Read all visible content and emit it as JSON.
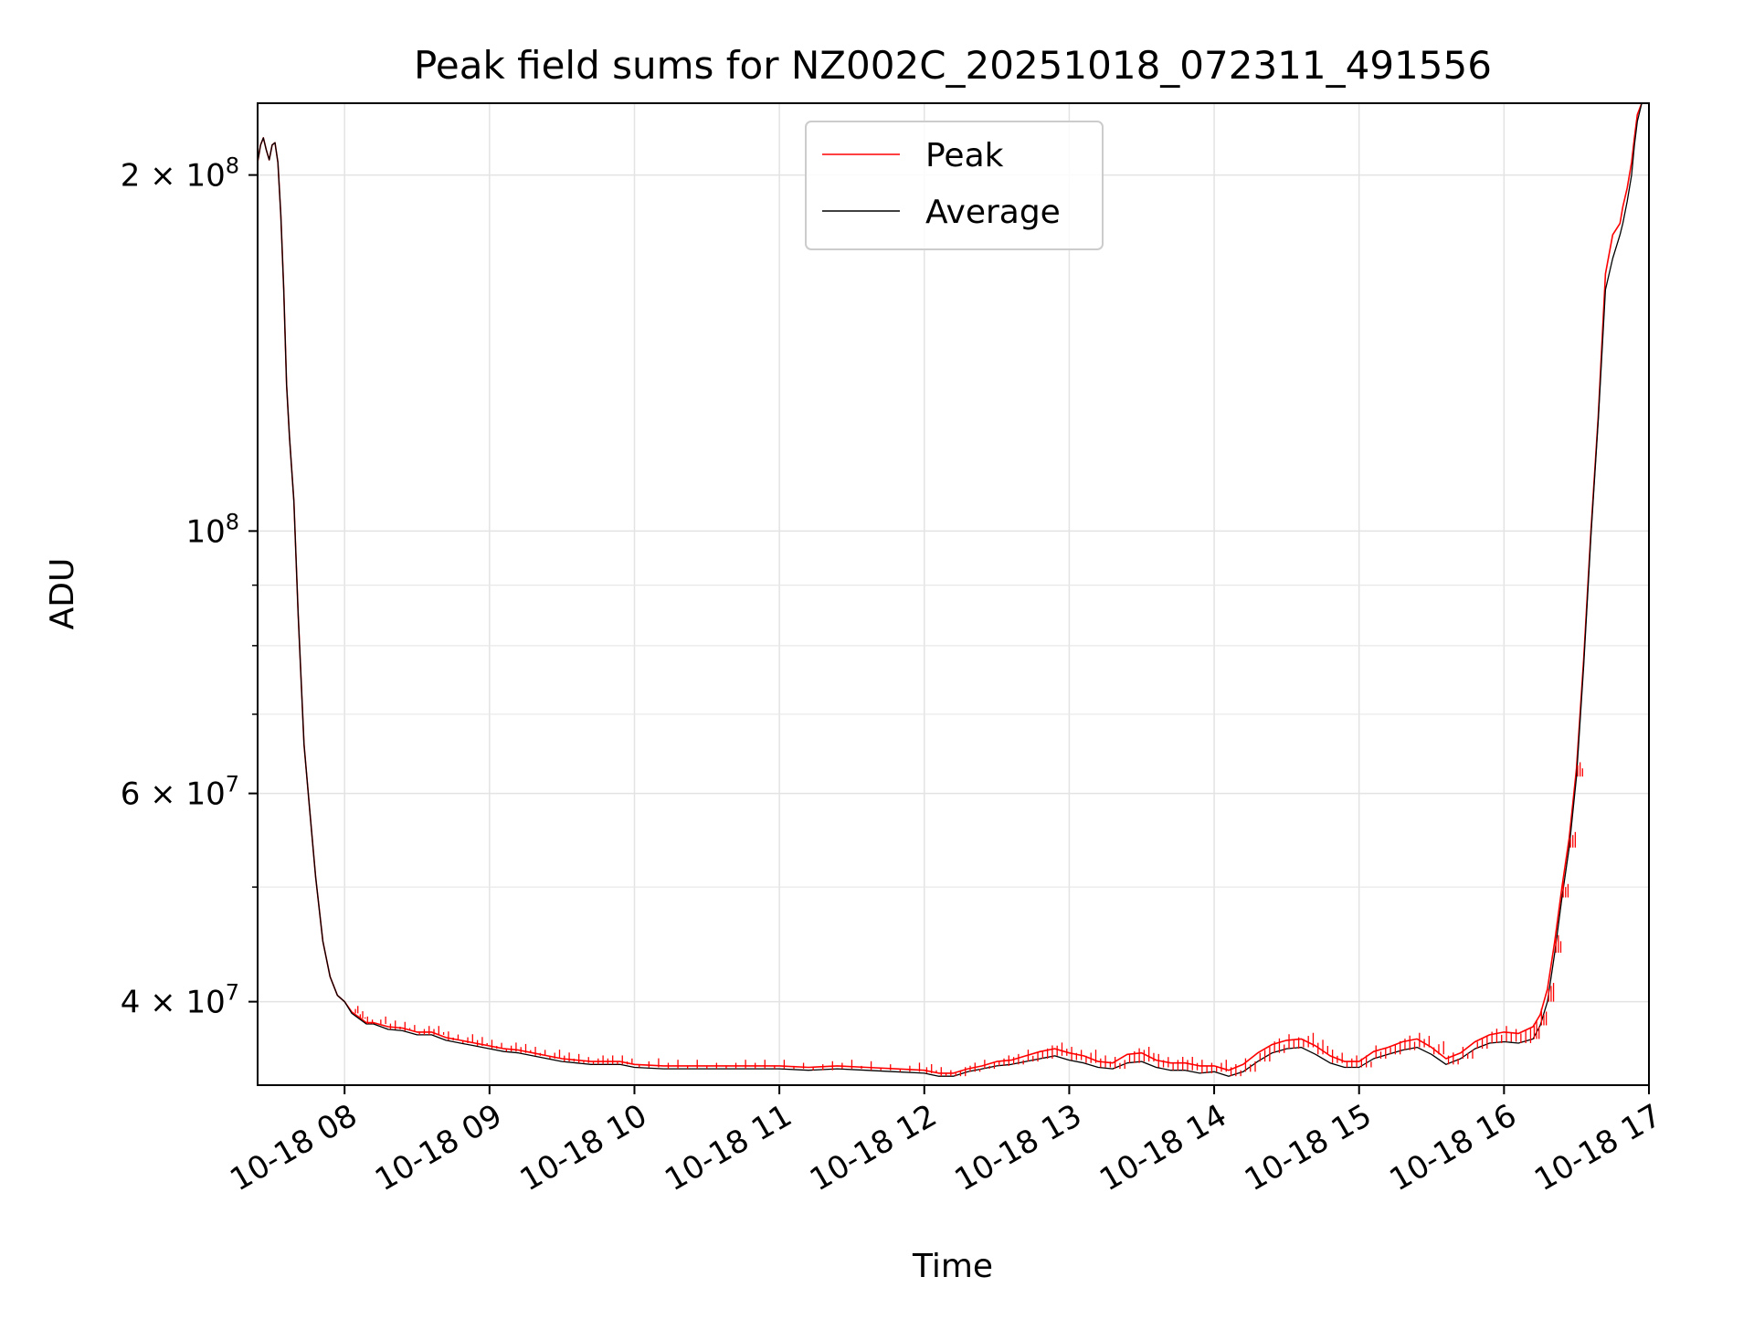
{
  "chart_data": {
    "type": "line",
    "title": "Peak field sums for NZ002C_20251018_072311_491556",
    "xlabel": "Time",
    "ylabel": "ADU",
    "xlim": [
      7.4,
      17.0
    ],
    "ylim": [
      34000000,
      230000000
    ],
    "yscale": "log",
    "grid": true,
    "legend_position": "upper center",
    "x_ticks": [
      {
        "value": 8,
        "label": "10-18 08"
      },
      {
        "value": 9,
        "label": "10-18 09"
      },
      {
        "value": 10,
        "label": "10-18 10"
      },
      {
        "value": 11,
        "label": "10-18 11"
      },
      {
        "value": 12,
        "label": "10-18 12"
      },
      {
        "value": 13,
        "label": "10-18 13"
      },
      {
        "value": 14,
        "label": "10-18 14"
      },
      {
        "value": 15,
        "label": "10-18 15"
      },
      {
        "value": 16,
        "label": "10-18 16"
      },
      {
        "value": 17,
        "label": "10-18 17"
      }
    ],
    "y_ticks": [
      {
        "value": 40000000,
        "base": "4 × 10",
        "exp": "7"
      },
      {
        "value": 60000000,
        "base": "6 × 10",
        "exp": "7"
      },
      {
        "value": 100000000,
        "base": "10",
        "exp": "8"
      },
      {
        "value": 200000000,
        "base": "2 × 10",
        "exp": "8"
      }
    ],
    "y_minor_ticks": [
      50000000,
      70000000,
      80000000,
      90000000
    ],
    "x": [
      7.4,
      7.42,
      7.44,
      7.46,
      7.48,
      7.5,
      7.52,
      7.54,
      7.56,
      7.58,
      7.6,
      7.62,
      7.65,
      7.68,
      7.72,
      7.76,
      7.8,
      7.85,
      7.9,
      7.95,
      8.0,
      8.05,
      8.1,
      8.15,
      8.2,
      8.3,
      8.4,
      8.5,
      8.6,
      8.7,
      8.8,
      8.9,
      9.0,
      9.1,
      9.2,
      9.3,
      9.4,
      9.5,
      9.6,
      9.7,
      9.8,
      9.9,
      10.0,
      10.2,
      10.4,
      10.6,
      10.8,
      11.0,
      11.2,
      11.4,
      11.6,
      11.8,
      12.0,
      12.1,
      12.2,
      12.3,
      12.4,
      12.5,
      12.6,
      12.7,
      12.8,
      12.9,
      13.0,
      13.1,
      13.2,
      13.3,
      13.4,
      13.5,
      13.6,
      13.7,
      13.8,
      13.9,
      14.0,
      14.1,
      14.2,
      14.3,
      14.4,
      14.5,
      14.6,
      14.7,
      14.8,
      14.9,
      15.0,
      15.1,
      15.2,
      15.3,
      15.4,
      15.5,
      15.6,
      15.7,
      15.8,
      15.9,
      16.0,
      16.1,
      16.2,
      16.25,
      16.3,
      16.35,
      16.4,
      16.45,
      16.5,
      16.55,
      16.6,
      16.65,
      16.7,
      16.75,
      16.8,
      16.82,
      16.85,
      16.88,
      16.9,
      16.92,
      16.95
    ],
    "series": [
      {
        "name": "Peak",
        "color": "#ff0000",
        "values": [
          205000000,
          212000000,
          215000000,
          210000000,
          206000000,
          212000000,
          213000000,
          205000000,
          185000000,
          160000000,
          133000000,
          120000000,
          106000000,
          85000000,
          66000000,
          58000000,
          51000000,
          45000000,
          42000000,
          40500000,
          40000000,
          39200000,
          38800000,
          38400000,
          38400000,
          38100000,
          38000000,
          37700000,
          37700000,
          37300000,
          37100000,
          36900000,
          36700000,
          36500000,
          36400000,
          36200000,
          36000000,
          35800000,
          35700000,
          35600000,
          35600000,
          35600000,
          35400000,
          35300000,
          35300000,
          35300000,
          35300000,
          35300000,
          35200000,
          35300000,
          35200000,
          35100000,
          35000000,
          34800000,
          34800000,
          35100000,
          35300000,
          35600000,
          35700000,
          36000000,
          36300000,
          36500000,
          36200000,
          36000000,
          35600000,
          35500000,
          36100000,
          36200000,
          35700000,
          35500000,
          35500000,
          35300000,
          35300000,
          35000000,
          35400000,
          36200000,
          36800000,
          37100000,
          37200000,
          36700000,
          36000000,
          35600000,
          35600000,
          36300000,
          36600000,
          37000000,
          37200000,
          36600000,
          35800000,
          36200000,
          37000000,
          37500000,
          37700000,
          37600000,
          38100000,
          39000000,
          41000000,
          45000000,
          50000000,
          55000000,
          63000000,
          78000000,
          100000000,
          125000000,
          165000000,
          178000000,
          182000000,
          188000000,
          195000000,
          205000000,
          215000000,
          225000000,
          230000000
        ]
      },
      {
        "name": "Average",
        "color": "#000000",
        "values": [
          205000000,
          212000000,
          215000000,
          210000000,
          206000000,
          212000000,
          213000000,
          205000000,
          185000000,
          160000000,
          133000000,
          120000000,
          106000000,
          85000000,
          66000000,
          58000000,
          51000000,
          45000000,
          42000000,
          40500000,
          40000000,
          39100000,
          38700000,
          38300000,
          38300000,
          37900000,
          37800000,
          37500000,
          37500000,
          37100000,
          36900000,
          36700000,
          36500000,
          36300000,
          36200000,
          36000000,
          35800000,
          35600000,
          35500000,
          35400000,
          35400000,
          35400000,
          35200000,
          35100000,
          35100000,
          35100000,
          35100000,
          35100000,
          35000000,
          35100000,
          35000000,
          34900000,
          34800000,
          34600000,
          34600000,
          34900000,
          35100000,
          35300000,
          35400000,
          35600000,
          35800000,
          36000000,
          35700000,
          35500000,
          35200000,
          35100000,
          35500000,
          35600000,
          35200000,
          35000000,
          35000000,
          34800000,
          34900000,
          34600000,
          34900000,
          35600000,
          36200000,
          36500000,
          36600000,
          36100000,
          35500000,
          35200000,
          35200000,
          35800000,
          36100000,
          36400000,
          36600000,
          36100000,
          35400000,
          35800000,
          36500000,
          36900000,
          37000000,
          36900000,
          37200000,
          38200000,
          40000000,
          44000000,
          49000000,
          54000000,
          62000000,
          77000000,
          99000000,
          124000000,
          160000000,
          170000000,
          178000000,
          182000000,
          190000000,
          200000000,
          212000000,
          222000000,
          230000000
        ]
      }
    ]
  }
}
